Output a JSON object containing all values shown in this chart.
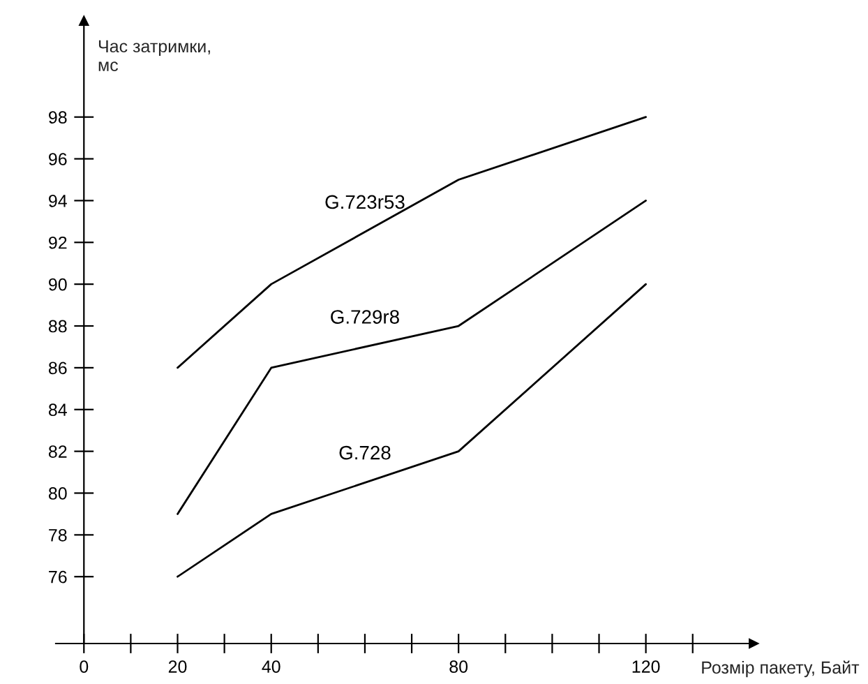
{
  "chart_data": {
    "type": "line",
    "ylabel": "Час затримки,\nмс",
    "xlabel": "Розмір пакету, Байт",
    "x": [
      20,
      40,
      80,
      120
    ],
    "series": [
      {
        "name": "G.723r53",
        "color": "#000000",
        "values": [
          86,
          90,
          95,
          98
        ]
      },
      {
        "name": "G.729r8",
        "color": "#000000",
        "values": [
          79,
          86,
          88,
          94
        ]
      },
      {
        "name": "G.728",
        "color": "#000000",
        "values": [
          76,
          79,
          82,
          90
        ]
      }
    ],
    "xlim": [
      -6,
      143
    ],
    "ylim": [
      72.8,
      102.6
    ],
    "xticks": [
      0,
      {
        "value": 10,
        "label": null
      },
      20,
      {
        "value": 30,
        "label": null
      },
      40,
      {
        "value": 50,
        "label": null
      },
      {
        "value": 60,
        "label": null
      },
      {
        "value": 70,
        "label": null
      },
      80,
      {
        "value": 90,
        "label": null
      },
      {
        "value": 100,
        "label": null
      },
      {
        "value": 110,
        "label": null
      },
      120,
      {
        "value": 130,
        "label": null
      }
    ],
    "yticks": [
      76,
      78,
      80,
      82,
      84,
      86,
      88,
      90,
      92,
      94,
      96,
      98
    ],
    "grid": false,
    "legend": false,
    "marker": "none",
    "line_style": "solid"
  }
}
